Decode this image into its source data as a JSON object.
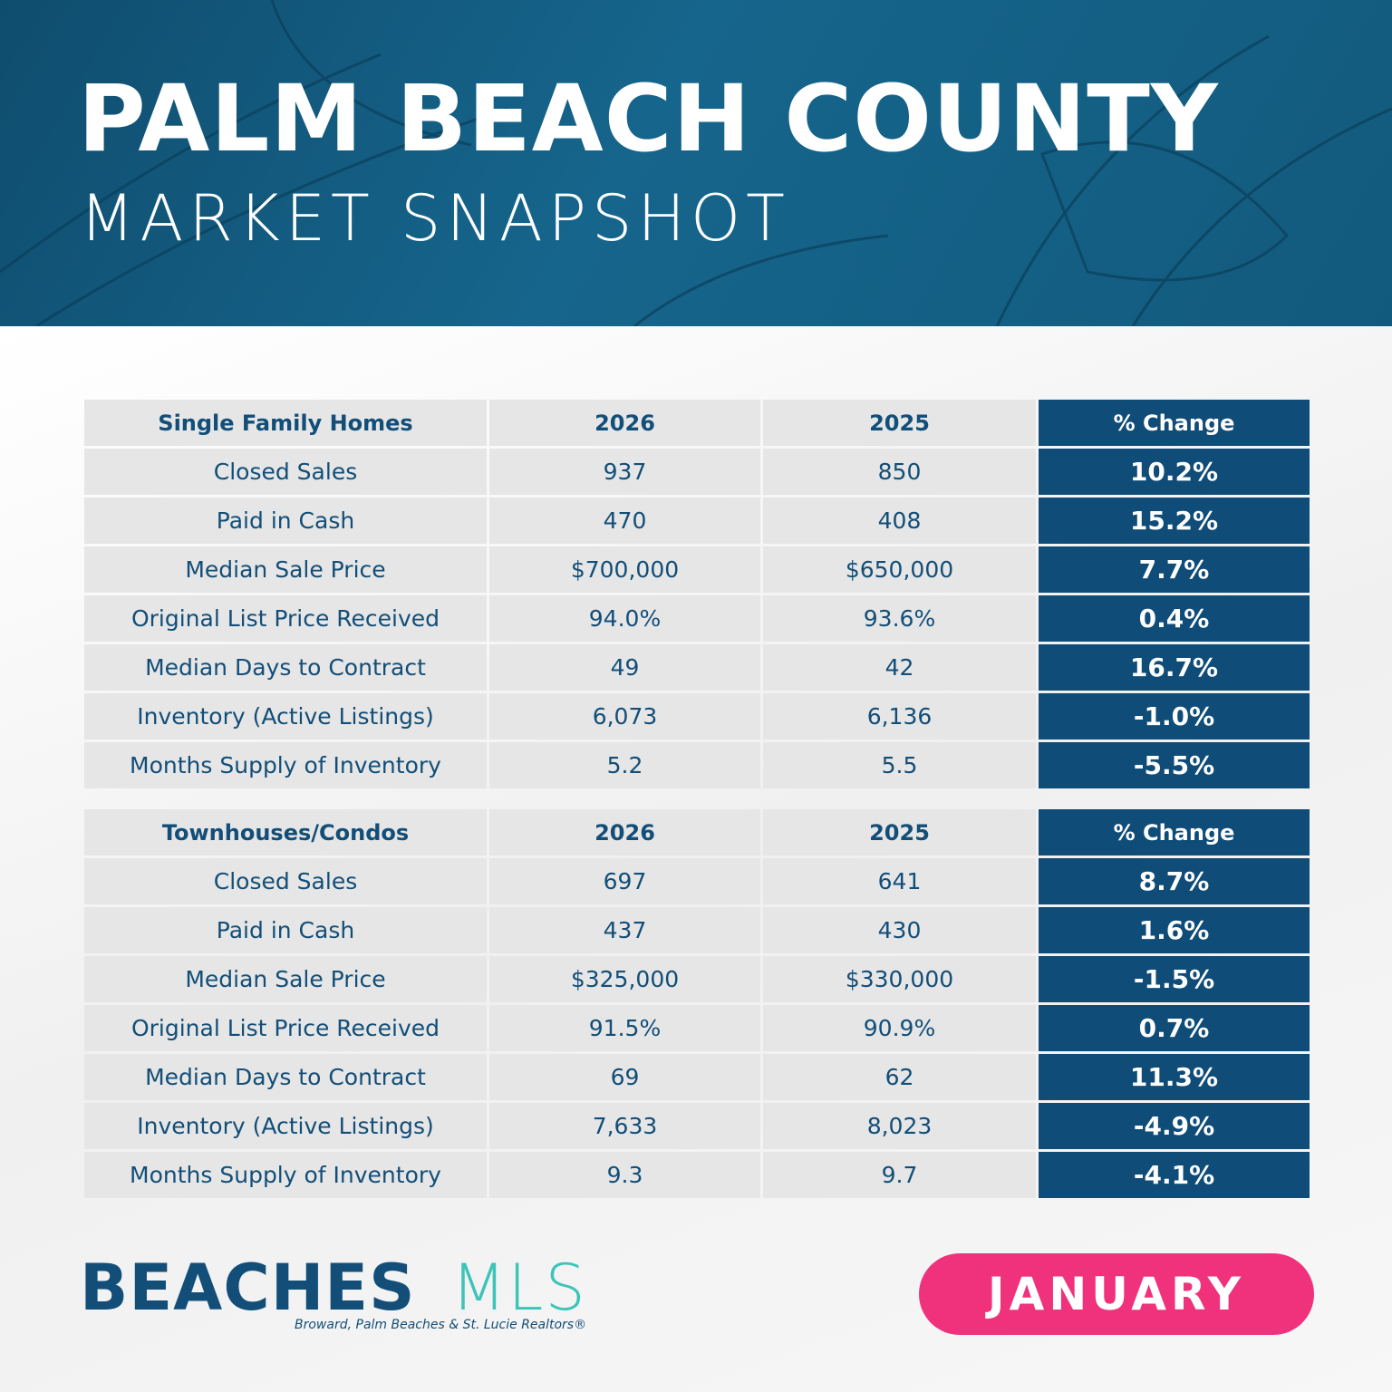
{
  "header": {
    "title": "PALM BEACH COUNTY",
    "subtitle": "MARKET SNAPSHOT"
  },
  "colors": {
    "banner": "#135a7e",
    "navy": "#0f4c78",
    "cell": "#e6e6e6",
    "teal": "#3cc4b8",
    "pink": "#f0317b"
  },
  "tables": [
    {
      "headers": [
        "Single Family Homes",
        "2026",
        "2025",
        "% Change"
      ],
      "rows": [
        [
          "Closed Sales",
          "937",
          "850",
          "10.2%"
        ],
        [
          "Paid in Cash",
          "470",
          "408",
          "15.2%"
        ],
        [
          "Median Sale Price",
          "$700,000",
          "$650,000",
          "7.7%"
        ],
        [
          "Original List Price Received",
          "94.0%",
          "93.6%",
          "0.4%"
        ],
        [
          "Median Days to Contract",
          "49",
          "42",
          "16.7%"
        ],
        [
          "Inventory (Active Listings)",
          "6,073",
          "6,136",
          "-1.0%"
        ],
        [
          "Months Supply of Inventory",
          "5.2",
          "5.5",
          "-5.5%"
        ]
      ]
    },
    {
      "headers": [
        "Townhouses/Condos",
        "2026",
        "2025",
        "% Change"
      ],
      "rows": [
        [
          "Closed Sales",
          "697",
          "641",
          "8.7%"
        ],
        [
          "Paid in Cash",
          "437",
          "430",
          "1.6%"
        ],
        [
          "Median Sale Price",
          "$325,000",
          "$330,000",
          "-1.5%"
        ],
        [
          "Original List Price Received",
          "91.5%",
          "90.9%",
          "0.7%"
        ],
        [
          "Median Days to Contract",
          "69",
          "62",
          "11.3%"
        ],
        [
          "Inventory (Active Listings)",
          "7,633",
          "8,023",
          "-4.9%"
        ],
        [
          "Months Supply of Inventory",
          "9.3",
          "9.7",
          "-4.1%"
        ]
      ]
    }
  ],
  "logo": {
    "bold": "BEACHES",
    "light": "MLS",
    "tagline": "Broward, Palm Beaches & St. Lucie Realtors®"
  },
  "month_badge": "JANUARY"
}
